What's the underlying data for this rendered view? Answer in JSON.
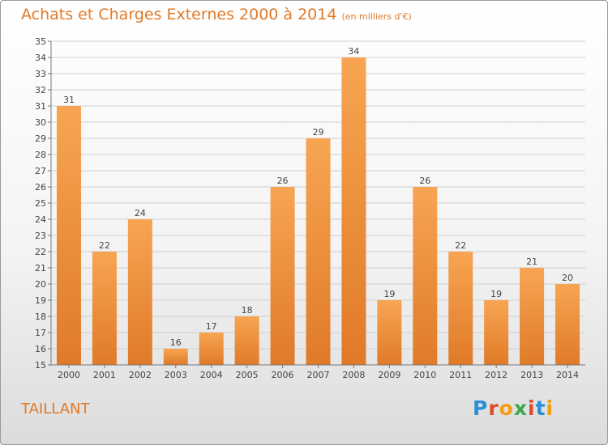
{
  "header": {
    "title": "Achats et Charges Externes 2000 à 2014",
    "unit": "(en milliers d'€)"
  },
  "footer": {
    "town": "TAILLANT",
    "logo": "Proxiti"
  },
  "colors": {
    "bar_light": "#f7a552",
    "bar_dark": "#e07a28",
    "title": "#e07a28"
  },
  "chart_data": {
    "type": "bar",
    "title": "Achats et Charges Externes 2000 à 2014",
    "categories": [
      "2000",
      "2001",
      "2002",
      "2003",
      "2004",
      "2005",
      "2006",
      "2007",
      "2008",
      "2009",
      "2010",
      "2011",
      "2012",
      "2013",
      "2014"
    ],
    "values": [
      31,
      22,
      24,
      16,
      17,
      18,
      26,
      29,
      34,
      19,
      26,
      22,
      19,
      21,
      20
    ],
    "ylim": [
      15,
      35
    ],
    "yticks": [
      15,
      16,
      17,
      18,
      19,
      20,
      21,
      22,
      23,
      24,
      25,
      26,
      27,
      28,
      29,
      30,
      31,
      32,
      33,
      34,
      35
    ],
    "grid": true,
    "xlabel": "",
    "ylabel": ""
  }
}
